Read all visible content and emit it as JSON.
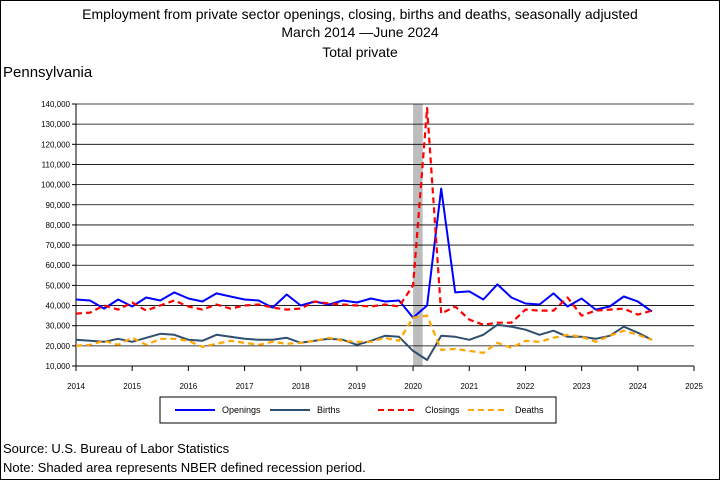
{
  "header": {
    "title_line1": "Employment from private sector openings, closing, births and deaths, seasonally adjusted",
    "title_line2": "March 2014 —June 2024",
    "title_line3": "Total private",
    "geography": "Pennsylvania"
  },
  "footer": {
    "source": "Source: U.S. Bureau of Labor Statistics",
    "note": "Note: Shaded area represents NBER defined recession period."
  },
  "chart_data": {
    "type": "line",
    "x_unit": "year (fractional, quarterly points)",
    "xlim": [
      2014,
      2025
    ],
    "ylim": [
      10000,
      140000
    ],
    "x_ticks": [
      "2014",
      "2015",
      "2016",
      "2017",
      "2018",
      "2019",
      "2020",
      "2021",
      "2022",
      "2023",
      "2024",
      "2025"
    ],
    "y_ticks": [
      "10,000",
      "20,000",
      "30,000",
      "40,000",
      "50,000",
      "60,000",
      "70,000",
      "80,000",
      "90,000",
      "100,000",
      "110,000",
      "120,000",
      "130,000",
      "140,000"
    ],
    "grid": "horizontal",
    "recession": {
      "start": 2020.0,
      "end": 2020.17,
      "color": "#bdbdbd"
    },
    "legend_placement": "bottom",
    "x": [
      2014.0,
      2014.25,
      2014.5,
      2014.75,
      2015.0,
      2015.25,
      2015.5,
      2015.75,
      2016.0,
      2016.25,
      2016.5,
      2016.75,
      2017.0,
      2017.25,
      2017.5,
      2017.75,
      2018.0,
      2018.25,
      2018.5,
      2018.75,
      2019.0,
      2019.25,
      2019.5,
      2019.75,
      2020.0,
      2020.25,
      2020.5,
      2020.75,
      2021.0,
      2021.25,
      2021.5,
      2021.75,
      2022.0,
      2022.25,
      2022.5,
      2022.75,
      2023.0,
      2023.25,
      2023.5,
      2023.75,
      2024.0,
      2024.25
    ],
    "series": [
      {
        "name": "Openings",
        "color": "#0000ff",
        "dash": "solid",
        "values": [
          43000,
          42500,
          38500,
          43000,
          39500,
          44000,
          42500,
          46500,
          43500,
          42000,
          46000,
          44500,
          43000,
          42500,
          39000,
          45500,
          40000,
          42000,
          40500,
          42500,
          41500,
          43500,
          42000,
          42500,
          34000,
          40000,
          98000,
          46500,
          47000,
          43000,
          50500,
          44000,
          41000,
          40500,
          46000,
          39500,
          43500,
          38000,
          39500,
          44500,
          42000,
          37000
        ]
      },
      {
        "name": "Births",
        "color": "#2f4f6f",
        "dash": "solid",
        "values": [
          23000,
          22500,
          22000,
          23500,
          22000,
          24000,
          26000,
          25500,
          23000,
          22500,
          25500,
          24500,
          23500,
          23000,
          23000,
          24000,
          21500,
          22500,
          23500,
          23000,
          20500,
          22500,
          25000,
          24500,
          17500,
          13000,
          25000,
          24500,
          23000,
          25500,
          30500,
          29500,
          28000,
          25500,
          27500,
          24500,
          24500,
          23500,
          25000,
          29500,
          26500,
          23000
        ]
      },
      {
        "name": "Closings",
        "color": "#ff0000",
        "dash": "dashed",
        "values": [
          36000,
          36500,
          40000,
          38000,
          41500,
          37500,
          40000,
          42500,
          39500,
          38000,
          40500,
          38500,
          40000,
          40500,
          39000,
          38000,
          38500,
          42000,
          41000,
          40500,
          40000,
          39500,
          40500,
          39500,
          50000,
          138000,
          36000,
          39500,
          33000,
          30500,
          31500,
          31500,
          38000,
          37500,
          37500,
          44000,
          35000,
          37500,
          38000,
          38500,
          35500,
          37500
        ]
      },
      {
        "name": "Deaths",
        "color": "#ffa500",
        "dash": "dashed",
        "values": [
          20000,
          20500,
          22500,
          20500,
          24000,
          20500,
          23500,
          23500,
          22500,
          19500,
          21000,
          22500,
          21500,
          20500,
          22000,
          21000,
          21500,
          22500,
          24000,
          22500,
          22000,
          22000,
          24000,
          22500,
          34000,
          35000,
          18000,
          18500,
          17500,
          16500,
          21500,
          19000,
          22500,
          22000,
          24000,
          25500,
          24500,
          22000,
          25000,
          27500,
          25500,
          23000
        ]
      }
    ]
  }
}
